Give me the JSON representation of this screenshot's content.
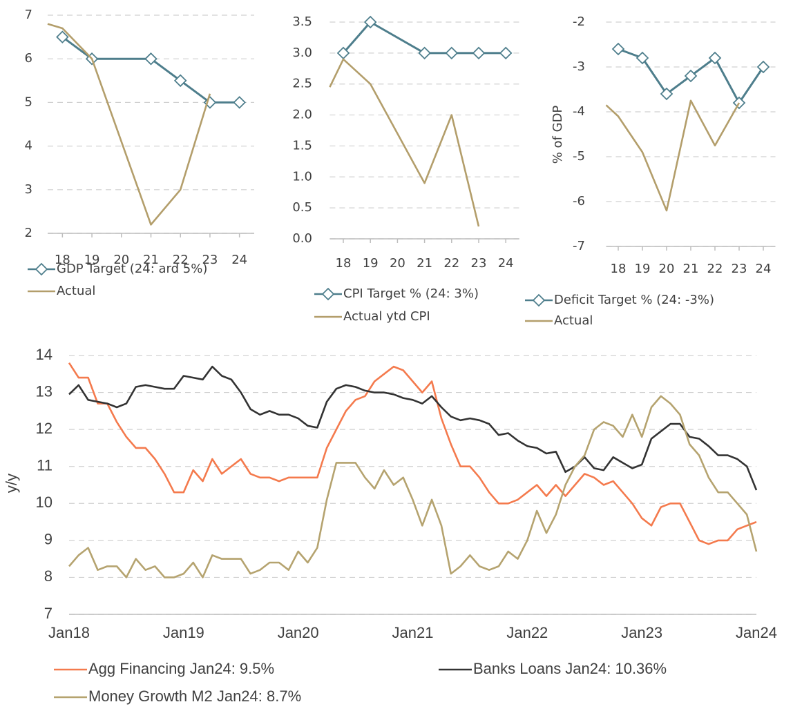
{
  "chart_data": [
    {
      "type": "line",
      "xlim": [
        17.5,
        24.5
      ],
      "xticks": [
        18,
        19,
        20,
        21,
        22,
        23,
        24
      ],
      "ylim": [
        2,
        7
      ],
      "yticks": [
        2,
        3,
        4,
        5,
        6,
        7
      ],
      "grid": true,
      "series": [
        {
          "name": "GDP Target (24: ard 5%)",
          "color": "#4e7e8c",
          "marker": "diamond",
          "x": [
            18,
            19,
            21,
            22,
            23,
            24
          ],
          "values": [
            6.5,
            6.0,
            6.0,
            5.5,
            5.0,
            5.0
          ]
        },
        {
          "name": "Actual",
          "color": "#b39e6b",
          "x": [
            17.5,
            18,
            19,
            21,
            22,
            23
          ],
          "values": [
            6.8,
            6.7,
            6.0,
            2.2,
            3.0,
            5.2
          ]
        }
      ]
    },
    {
      "type": "line",
      "xlim": [
        17.5,
        24.5
      ],
      "xticks": [
        18,
        19,
        20,
        21,
        22,
        23,
        24
      ],
      "ylim": [
        0,
        3.5
      ],
      "yticks": [
        {
          "value": 0,
          "label": "0.0"
        },
        0.5,
        {
          "value": 1,
          "label": "1.0"
        },
        1.5,
        {
          "value": 2,
          "label": "2.0"
        },
        2.5,
        {
          "value": 3,
          "label": "3.0"
        },
        3.5
      ],
      "grid": true,
      "series": [
        {
          "name": "CPI Target % (24: 3%)",
          "color": "#4e7e8c",
          "marker": "diamond",
          "x": [
            18,
            19,
            21,
            22,
            23,
            24
          ],
          "values": [
            3.0,
            3.5,
            3.0,
            3.0,
            3.0,
            3.0
          ]
        },
        {
          "name": "Actual ytd CPI",
          "color": "#b39e6b",
          "x": [
            17.5,
            18,
            19,
            21,
            22,
            23
          ],
          "values": [
            2.45,
            2.9,
            2.5,
            0.9,
            2.0,
            0.2
          ]
        }
      ]
    },
    {
      "type": "line",
      "y_label": "% of GDP",
      "xlim": [
        17.5,
        24.5
      ],
      "xticks": [
        18,
        19,
        20,
        21,
        22,
        23,
        24
      ],
      "ylim": [
        -7,
        -2
      ],
      "yticks": [
        -7,
        -6,
        -5,
        -4,
        -3,
        -2
      ],
      "grid": true,
      "series": [
        {
          "name": "Deficit Target % (24: -3%)",
          "color": "#4e7e8c",
          "marker": "diamond",
          "x": [
            18,
            19,
            20,
            21,
            22,
            23,
            24
          ],
          "values": [
            -2.6,
            -2.8,
            -3.6,
            -3.2,
            -2.8,
            -3.8,
            -3.0
          ]
        },
        {
          "name": "Actual",
          "color": "#b39e6b",
          "x": [
            17.5,
            18,
            19,
            20,
            21,
            22,
            23
          ],
          "values": [
            -3.85,
            -4.1,
            -4.9,
            -6.2,
            -3.75,
            -4.75,
            -3.8
          ]
        }
      ]
    },
    {
      "type": "line",
      "y_label": "y/y",
      "ylim": [
        7,
        14
      ],
      "yticks": [
        7,
        8,
        9,
        10,
        11,
        12,
        13,
        14
      ],
      "grid": true,
      "categories": [
        "Jan18",
        null,
        null,
        null,
        null,
        null,
        null,
        null,
        null,
        null,
        null,
        null,
        "Jan19",
        null,
        null,
        null,
        null,
        null,
        null,
        null,
        null,
        null,
        null,
        null,
        "Jan20",
        null,
        null,
        null,
        null,
        null,
        null,
        null,
        null,
        null,
        null,
        null,
        "Jan21",
        null,
        null,
        null,
        null,
        null,
        null,
        null,
        null,
        null,
        null,
        null,
        "Jan22",
        null,
        null,
        null,
        null,
        null,
        null,
        null,
        null,
        null,
        null,
        null,
        "Jan23",
        null,
        null,
        null,
        null,
        null,
        null,
        null,
        null,
        null,
        null,
        null,
        "Jan24"
      ],
      "series": [
        {
          "name": "Agg Financing Jan24: 9.5%",
          "color": "#f47a4d",
          "values": [
            13.8,
            13.4,
            13.4,
            12.7,
            12.7,
            12.2,
            11.8,
            11.5,
            11.5,
            11.2,
            10.8,
            10.3,
            10.3,
            10.9,
            10.6,
            11.2,
            10.8,
            11.0,
            11.2,
            10.8,
            10.7,
            10.7,
            10.6,
            10.7,
            10.7,
            10.7,
            10.7,
            11.5,
            12.0,
            12.5,
            12.8,
            12.9,
            13.3,
            13.5,
            13.7,
            13.6,
            13.3,
            13.0,
            13.3,
            12.3,
            11.6,
            11.0,
            11.0,
            10.7,
            10.3,
            10.0,
            10.0,
            10.1,
            10.3,
            10.5,
            10.2,
            10.5,
            10.2,
            10.5,
            10.8,
            10.7,
            10.5,
            10.6,
            10.3,
            10.0,
            9.6,
            9.4,
            9.9,
            10.0,
            10.0,
            9.5,
            9.0,
            8.9,
            9.0,
            9.0,
            9.3,
            9.4,
            9.5
          ]
        },
        {
          "name": "Banks Loans Jan24: 10.36%",
          "color": "#333333",
          "values": [
            12.95,
            13.2,
            12.8,
            12.75,
            12.7,
            12.6,
            12.7,
            13.15,
            13.2,
            13.15,
            13.1,
            13.1,
            13.45,
            13.4,
            13.35,
            13.7,
            13.45,
            13.35,
            13.0,
            12.55,
            12.4,
            12.5,
            12.4,
            12.4,
            12.3,
            12.1,
            12.05,
            12.75,
            13.1,
            13.2,
            13.15,
            13.05,
            13.0,
            13.0,
            12.95,
            12.85,
            12.8,
            12.7,
            12.9,
            12.6,
            12.35,
            12.25,
            12.3,
            12.25,
            12.15,
            11.85,
            11.9,
            11.7,
            11.55,
            11.5,
            11.35,
            11.4,
            10.85,
            11.0,
            11.25,
            10.95,
            10.9,
            11.25,
            11.1,
            10.95,
            11.05,
            11.75,
            11.95,
            12.15,
            12.15,
            11.8,
            11.75,
            11.55,
            11.3,
            11.3,
            11.2,
            11.0,
            10.36
          ]
        },
        {
          "name": "Money Growth M2 Jan24: 8.7%",
          "color": "#b5a36f",
          "values": [
            8.3,
            8.6,
            8.8,
            8.2,
            8.3,
            8.3,
            8.0,
            8.5,
            8.2,
            8.3,
            8.0,
            8.0,
            8.1,
            8.4,
            8.0,
            8.6,
            8.5,
            8.5,
            8.5,
            8.1,
            8.2,
            8.4,
            8.4,
            8.2,
            8.7,
            8.4,
            8.8,
            10.1,
            11.1,
            11.1,
            11.1,
            10.7,
            10.4,
            10.9,
            10.5,
            10.7,
            10.1,
            9.4,
            10.1,
            9.4,
            8.1,
            8.3,
            8.6,
            8.3,
            8.2,
            8.3,
            8.7,
            8.5,
            9.0,
            9.8,
            9.2,
            9.7,
            10.5,
            11.0,
            11.3,
            12.0,
            12.2,
            12.1,
            11.8,
            12.4,
            11.8,
            12.6,
            12.9,
            12.7,
            12.4,
            11.6,
            11.3,
            10.7,
            10.3,
            10.3,
            10.0,
            9.7,
            8.7
          ]
        }
      ]
    }
  ]
}
